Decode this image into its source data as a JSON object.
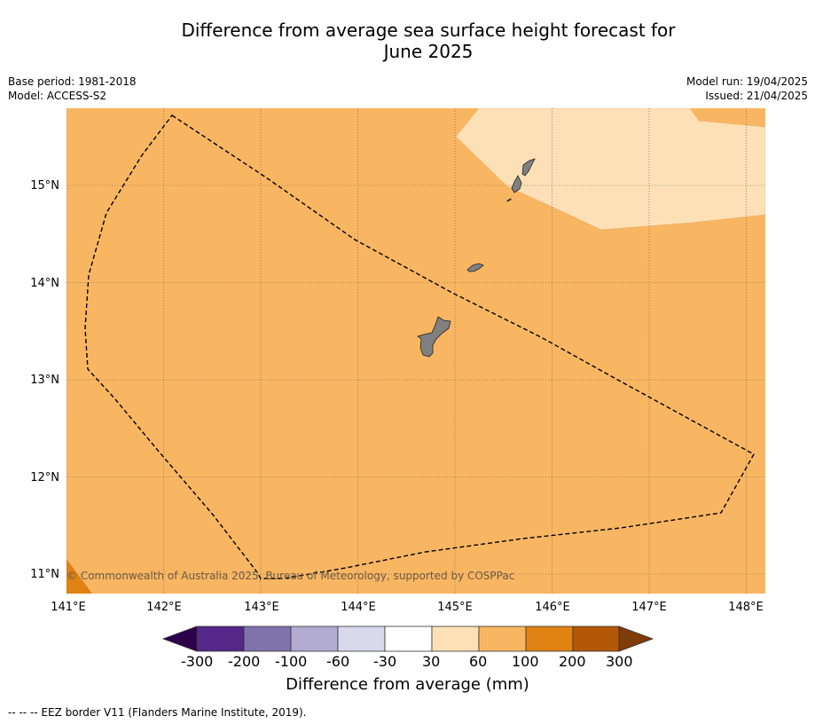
{
  "title_line1": "Difference from average sea surface height forecast for",
  "title_line2": "June 2025",
  "meta": {
    "base_period": "Base period: 1981-2018",
    "model": "Model: ACCESS-S2",
    "model_run": "Model run: 19/04/2025",
    "issued": "Issued: 21/04/2025"
  },
  "map": {
    "lon_labels": [
      "141°E",
      "142°E",
      "143°E",
      "144°E",
      "145°E",
      "146°E",
      "147°E",
      "148°E"
    ],
    "lat_labels": [
      "15°N",
      "14°N",
      "13°N",
      "12°N",
      "11°N"
    ],
    "copyright": "© Commonwealth of Australia 2025, Bureau of Meteorology, supported by COSPPac",
    "colors": {
      "band_60_100": "#f9b662",
      "band_30_60": "#fee0b6",
      "band_100_200": "#e08214",
      "land": "#808080",
      "eez_border": "#000000"
    }
  },
  "colorbar": {
    "ticks": [
      "-300",
      "-200",
      "-100",
      "-60",
      "-30",
      "30",
      "60",
      "100",
      "200",
      "300"
    ],
    "colors": [
      "#2d004b",
      "#542788",
      "#8073ac",
      "#b2abd2",
      "#d8daeb",
      "#ffffff",
      "#fee0b6",
      "#f9b662",
      "#e08214",
      "#b35806",
      "#7f3b08"
    ],
    "label": "Difference from average (mm)"
  },
  "footnote": "--  --  -- EEZ border V11 (Flanders Marine Institute, 2019)."
}
